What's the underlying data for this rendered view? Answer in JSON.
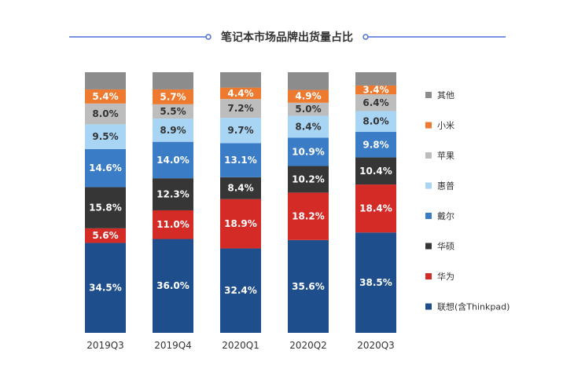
{
  "chart_data": {
    "type": "bar",
    "stacked": true,
    "title": "笔记本市场品牌出货量占比",
    "categories": [
      "2019Q3",
      "2019Q4",
      "2020Q1",
      "2020Q2",
      "2020Q3"
    ],
    "series": [
      {
        "name": "联想(含Thinkpad)",
        "color": "#1f4e8c",
        "values": [
          34.5,
          36.0,
          32.4,
          35.6,
          38.5
        ],
        "labels": [
          "34.5%",
          "36.0%",
          "32.4%",
          "35.6%",
          "38.5%"
        ]
      },
      {
        "name": "华为",
        "color": "#d42b27",
        "values": [
          5.6,
          11.0,
          18.9,
          18.2,
          18.4
        ],
        "labels": [
          "5.6%",
          "11.0%",
          "18.9%",
          "18.2%",
          "18.4%"
        ]
      },
      {
        "name": "华硕",
        "color": "#363636",
        "values": [
          15.8,
          12.3,
          8.4,
          10.2,
          10.4
        ],
        "labels": [
          "15.8%",
          "12.3%",
          "8.4%",
          "10.2%",
          "10.4%"
        ]
      },
      {
        "name": "戴尔",
        "color": "#3a7cc6",
        "values": [
          14.6,
          14.0,
          13.1,
          10.9,
          9.8
        ],
        "labels": [
          "14.6%",
          "14.0%",
          "13.1%",
          "10.9%",
          "9.8%"
        ]
      },
      {
        "name": "惠普",
        "color": "#a9d5f5",
        "values": [
          9.5,
          8.9,
          9.7,
          8.4,
          8.0
        ],
        "labels": [
          "9.5%",
          "8.9%",
          "9.7%",
          "8.4%",
          "8.0%"
        ]
      },
      {
        "name": "苹果",
        "color": "#bdbdbd",
        "values": [
          8.0,
          5.5,
          7.2,
          5.0,
          6.4
        ],
        "labels": [
          "8.0%",
          "5.5%",
          "7.2%",
          "5.0%",
          "6.4%"
        ]
      },
      {
        "name": "小米",
        "color": "#ee7a2f",
        "values": [
          5.4,
          5.7,
          4.4,
          4.9,
          3.4
        ],
        "labels": [
          "5.4%",
          "5.7%",
          "4.4%",
          "4.9%",
          "3.4%"
        ]
      },
      {
        "name": "其他",
        "color": "#8c8c8c",
        "values": [
          6.6,
          6.6,
          5.9,
          6.8,
          5.1
        ],
        "labels": [
          "",
          "",
          "",
          "",
          ""
        ]
      }
    ],
    "ylim": [
      0,
      100
    ],
    "grid": false,
    "legend_position": "right",
    "title_decoration_color": "#4f6fd8"
  }
}
